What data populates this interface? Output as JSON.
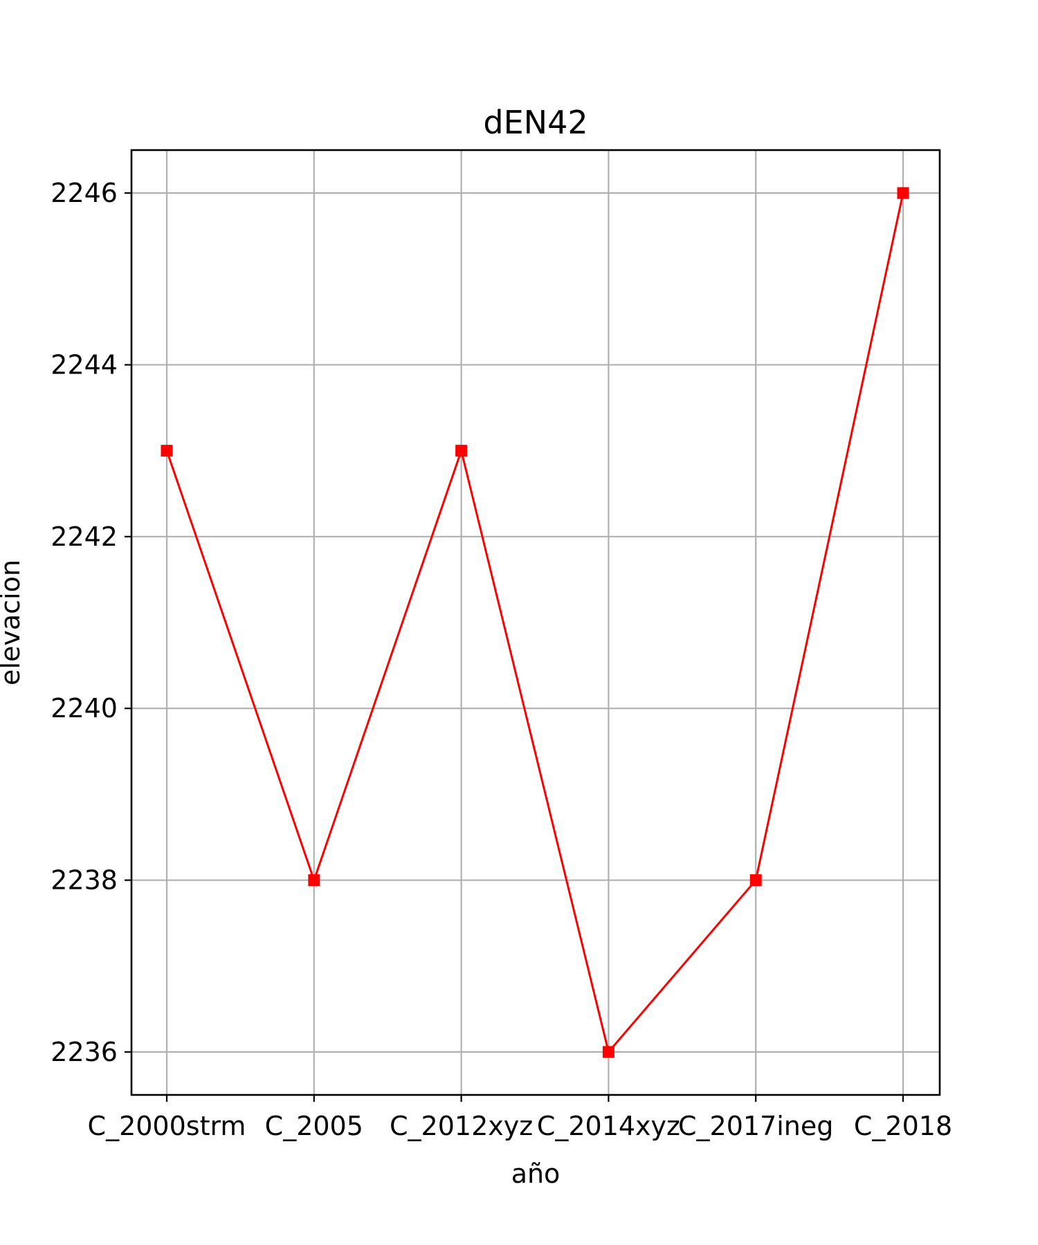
{
  "chart_data": {
    "type": "line",
    "title": "dEN42",
    "xlabel": "año",
    "ylabel": "elevacion",
    "categories": [
      "C_2000strm",
      "C_2005",
      "C_2012xyz",
      "C_2014xyz",
      "C_2017ineg",
      "C_2018"
    ],
    "series": [
      {
        "values": [
          2243,
          2238,
          2243,
          2236,
          2238,
          2246
        ],
        "color": "#ff0000",
        "marker": "square"
      }
    ],
    "ylim": [
      2235.5,
      2246.5
    ],
    "yticks": [
      2236,
      2238,
      2240,
      2242,
      2244,
      2246
    ],
    "grid": true,
    "legend": "none"
  }
}
